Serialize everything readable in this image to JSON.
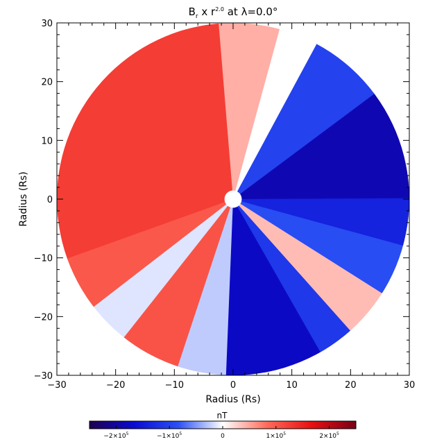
{
  "chart_data": {
    "type": "heatmap",
    "title": {
      "main": "B",
      "main_sub": "r",
      "mid": " x r",
      "mid_sup": "2.0",
      "tail": " at λ=0.0°"
    },
    "xlabel": "Radius (Rs)",
    "ylabel": "Radius (Rs)",
    "xlim": [
      -30,
      30
    ],
    "ylim": [
      -30,
      30
    ],
    "x_ticks": [
      "−30",
      "−20",
      "−10",
      "0",
      "10",
      "20",
      "30"
    ],
    "y_ticks": [
      "30",
      "20",
      "10",
      "0",
      "−10",
      "−20",
      "−30"
    ],
    "domain_radius_rs": 30,
    "inner_boundary_rs": 1,
    "field_sectors": [
      {
        "from_deg": 0,
        "to_deg": 37,
        "value": -0.75
      },
      {
        "from_deg": 37,
        "to_deg": 62,
        "value": -0.4
      },
      {
        "from_deg": 62,
        "to_deg": 75,
        "value": 0.0
      },
      {
        "from_deg": 75,
        "to_deg": 95,
        "value": 0.18
      },
      {
        "from_deg": 95,
        "to_deg": 200,
        "value": 0.5
      },
      {
        "from_deg": 200,
        "to_deg": 218,
        "value": 0.4
      },
      {
        "from_deg": 218,
        "to_deg": 232,
        "value": -0.05
      },
      {
        "from_deg": 232,
        "to_deg": 252,
        "value": 0.42
      },
      {
        "from_deg": 252,
        "to_deg": 268,
        "value": -0.1
      },
      {
        "from_deg": 268,
        "to_deg": 300,
        "value": -0.7
      },
      {
        "from_deg": 300,
        "to_deg": 312,
        "value": -0.45
      },
      {
        "from_deg": 312,
        "to_deg": 328,
        "value": 0.15
      },
      {
        "from_deg": 328,
        "to_deg": 345,
        "value": -0.35
      },
      {
        "from_deg": 345,
        "to_deg": 360,
        "value": -0.55
      }
    ],
    "colorbar": {
      "label": "nT",
      "ticks": [
        {
          "base": "−2×10",
          "exp": "5",
          "value": -200000
        },
        {
          "base": "−1×10",
          "exp": "5",
          "value": -100000
        },
        {
          "base": "0",
          "exp": "",
          "value": 0
        },
        {
          "base": "1×10",
          "exp": "5",
          "value": 100000
        },
        {
          "base": "2×10",
          "exp": "5",
          "value": 200000
        }
      ],
      "range": [
        -250000,
        250000
      ],
      "colormap": [
        "#1e0050",
        "#0a0ad2",
        "#2a50f5",
        "#ffffff",
        "#ff6a5a",
        "#e81010",
        "#780018"
      ]
    }
  }
}
